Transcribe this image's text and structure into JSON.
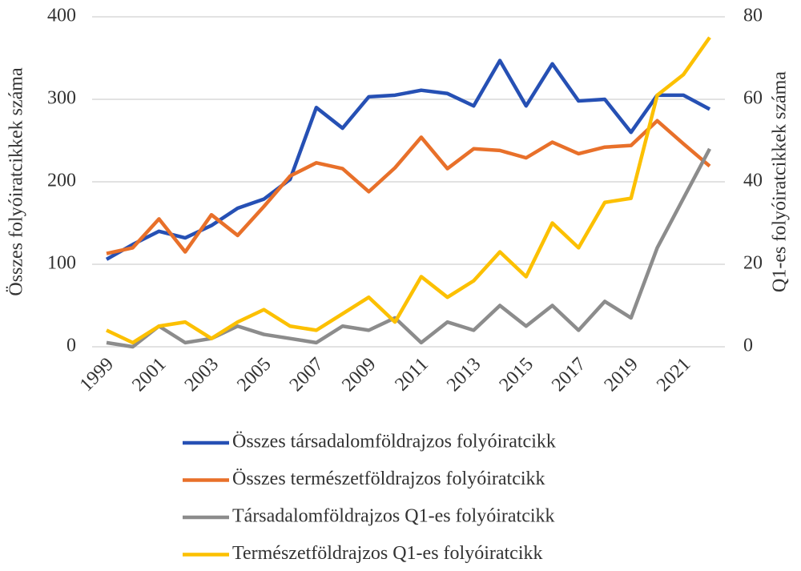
{
  "chart_data": {
    "type": "line",
    "y_label": "Összes folyóiratcikkek száma",
    "y2_label": "Q1-es folyóiratcikkek száma",
    "x": [
      1999,
      2000,
      2001,
      2002,
      2003,
      2004,
      2005,
      2006,
      2007,
      2008,
      2009,
      2010,
      2011,
      2012,
      2013,
      2014,
      2015,
      2016,
      2017,
      2018,
      2019,
      2020,
      2021,
      2022
    ],
    "xlim": [
      1999,
      2022
    ],
    "xticks": [
      1999,
      2001,
      2003,
      2005,
      2007,
      2009,
      2011,
      2013,
      2015,
      2017,
      2019,
      2021
    ],
    "ylim": [
      0,
      400
    ],
    "yticks": [
      0,
      100,
      200,
      300,
      400
    ],
    "y2lim": [
      0,
      80
    ],
    "y2ticks": [
      0,
      20,
      40,
      60,
      80
    ],
    "grid": true,
    "legend": "bottom",
    "series": [
      {
        "name": "Összes társadalomföldrajzos folyóiratcikk",
        "color": "#2650b4",
        "values": [
          106,
          124,
          140,
          132,
          147,
          168,
          179,
          203,
          290,
          265,
          303,
          305,
          311,
          307,
          292,
          347,
          292,
          343,
          298,
          300,
          260,
          305,
          305,
          288
        ]
      },
      {
        "name": "Összes természetföldrajzos folyóiratcikk",
        "color": "#e8702a",
        "values": [
          113,
          120,
          155,
          115,
          160,
          135,
          170,
          207,
          223,
          216,
          188,
          217,
          254,
          216,
          240,
          238,
          229,
          248,
          234,
          242,
          244,
          274,
          246,
          219
        ]
      },
      {
        "name": "Társadalomföldrajzos Q1-es folyóiratcikk",
        "color": "#8c8c8c",
        "axis": "y2",
        "values": [
          1,
          0,
          5,
          1,
          2,
          5,
          3,
          2,
          1,
          5,
          4,
          7,
          1,
          6,
          4,
          10,
          5,
          10,
          4,
          11,
          7,
          24,
          36,
          48
        ]
      },
      {
        "name": "Természetföldrajzos Q1-es folyóiratcikk",
        "color": "#fcc000",
        "axis": "y2",
        "values": [
          4,
          1,
          5,
          6,
          2,
          6,
          9,
          5,
          4,
          8,
          12,
          6,
          17,
          12,
          16,
          23,
          17,
          30,
          24,
          35,
          36,
          61,
          66,
          75
        ]
      }
    ]
  }
}
